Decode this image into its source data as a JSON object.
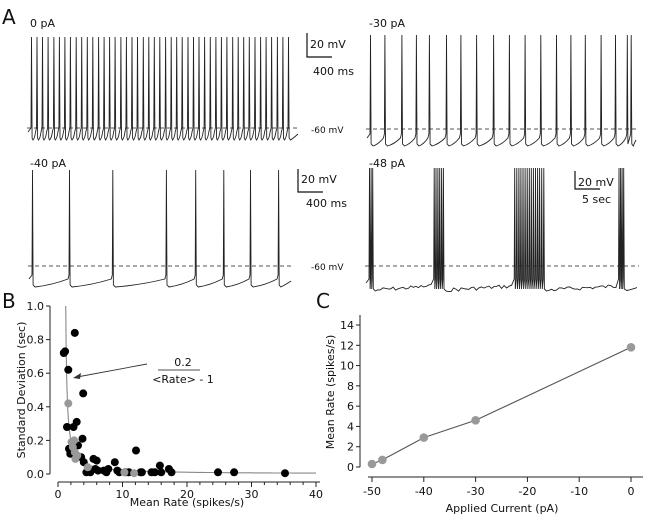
{
  "figure": {
    "panel_labels": {
      "a": "A",
      "b": "B",
      "c": "C"
    }
  },
  "chart_data": [
    {
      "type": "line",
      "panel": "A",
      "subpanel": "top-left",
      "title": "0 pA",
      "description": "membrane voltage trace, regular tonic spiking",
      "spike_count": 47,
      "spike_times_fraction": [
        0.0,
        0.021,
        0.042,
        0.063,
        0.085,
        0.106,
        0.127,
        0.148,
        0.17,
        0.191,
        0.212,
        0.233,
        0.255,
        0.276,
        0.297,
        0.318,
        0.34,
        0.361,
        0.382,
        0.403,
        0.425,
        0.446,
        0.467,
        0.488,
        0.51,
        0.531,
        0.552,
        0.573,
        0.595,
        0.616,
        0.637,
        0.658,
        0.68,
        0.701,
        0.722,
        0.743,
        0.765,
        0.786,
        0.807,
        0.828,
        0.85,
        0.871,
        0.892,
        0.913,
        0.935,
        0.956,
        0.977
      ],
      "reference_line_label": "-60 mV",
      "scale_bar": {
        "voltage": "20 mV",
        "time": "400 ms"
      }
    },
    {
      "type": "line",
      "panel": "A",
      "subpanel": "top-right",
      "title": "-30 pA",
      "description": "membrane voltage trace, tonic spiking at lower rate",
      "spike_count": 19,
      "spike_times_fraction": [
        0.0,
        0.055,
        0.12,
        0.175,
        0.225,
        0.29,
        0.345,
        0.405,
        0.47,
        0.53,
        0.59,
        0.65,
        0.71,
        0.765,
        0.82,
        0.88,
        0.935,
        0.98,
        0.995
      ],
      "reference_line_label": "-60 mV"
    },
    {
      "type": "line",
      "panel": "A",
      "subpanel": "bottom-left",
      "title": "-40 pA",
      "description": "membrane voltage trace, irregular slow spiking",
      "spike_count": 8,
      "spike_times_fraction": [
        0.0,
        0.145,
        0.315,
        0.525,
        0.64,
        0.75,
        0.855,
        0.965
      ],
      "reference_line_label": "-60 mV",
      "scale_bar": {
        "voltage": "20 mV",
        "time": "400 ms"
      }
    },
    {
      "type": "line",
      "panel": "A",
      "subpanel": "bottom-right",
      "title": "-48 pA",
      "description": "membrane voltage trace, bursting with long quiescent intervals",
      "bursts": [
        {
          "start_fraction": 0.0,
          "spikes": 3
        },
        {
          "start_fraction": 0.245,
          "spikes": 6
        },
        {
          "start_fraction": 0.55,
          "spikes": 15
        },
        {
          "start_fraction": 0.945,
          "spikes": 4
        }
      ],
      "reference_line_label": "-60 mV",
      "scale_bar": {
        "voltage": "20 mV",
        "time": "5 sec"
      }
    },
    {
      "type": "scatter",
      "panel": "B",
      "title": "",
      "xlabel": "Mean Rate (spikes/s)",
      "ylabel": "Standard Deviation (sec)",
      "xlim": [
        0,
        40
      ],
      "ylim": [
        0,
        1.0
      ],
      "xticks": [
        0,
        10,
        20,
        30,
        40
      ],
      "yticks": [
        0.0,
        0.2,
        0.4,
        0.6,
        0.8,
        1.0
      ],
      "ytick_labels": [
        "0.0",
        "0.2",
        "0.4",
        "0.6",
        "0.8",
        "1.0"
      ],
      "grid": false,
      "annotation": {
        "numerator": "0.2",
        "denominator": "<Rate> - 1"
      },
      "fit_curve": {
        "formula": "0.2 / (rate - 1)",
        "x_start": 1.2,
        "x_end": 40
      },
      "series": [
        {
          "name": "black",
          "color": "#000000",
          "points": [
            [
              0.9,
              0.72
            ],
            [
              1.1,
              0.73
            ],
            [
              2.6,
              0.84
            ],
            [
              1.6,
              0.62
            ],
            [
              3.9,
              0.48
            ],
            [
              1.4,
              0.28
            ],
            [
              2.4,
              0.28
            ],
            [
              2.9,
              0.31
            ],
            [
              3.8,
              0.21
            ],
            [
              1.7,
              0.15
            ],
            [
              1.9,
              0.12
            ],
            [
              3.1,
              0.17
            ],
            [
              3.6,
              0.1
            ],
            [
              4.0,
              0.07
            ],
            [
              4.4,
              0.01
            ],
            [
              5.5,
              0.09
            ],
            [
              6.0,
              0.08
            ],
            [
              5.8,
              0.03
            ],
            [
              6.2,
              0.02
            ],
            [
              7.1,
              0.02
            ],
            [
              7.5,
              0.01
            ],
            [
              7.8,
              0.03
            ],
            [
              8.8,
              0.07
            ],
            [
              9.2,
              0.02
            ],
            [
              10.4,
              0.01
            ],
            [
              11.0,
              0.01
            ],
            [
              12.1,
              0.14
            ],
            [
              12.8,
              0.01
            ],
            [
              13.0,
              0.01
            ],
            [
              14.5,
              0.01
            ],
            [
              15.0,
              0.01
            ],
            [
              15.8,
              0.05
            ],
            [
              16.0,
              0.01
            ],
            [
              17.2,
              0.03
            ],
            [
              17.6,
              0.01
            ],
            [
              24.8,
              0.01
            ],
            [
              27.3,
              0.01
            ],
            [
              35.2,
              0.005
            ],
            [
              5.0,
              0.01
            ],
            [
              9.5,
              0.01
            ]
          ]
        },
        {
          "name": "gray",
          "color": "#999999",
          "points": [
            [
              1.6,
              0.42
            ],
            [
              2.1,
              0.19
            ],
            [
              2.5,
              0.2
            ],
            [
              2.3,
              0.16
            ],
            [
              2.6,
              0.13
            ],
            [
              2.7,
              0.09
            ],
            [
              3.0,
              0.11
            ],
            [
              4.6,
              0.04
            ],
            [
              10.3,
              0.01
            ],
            [
              11.8,
              0.005
            ]
          ]
        }
      ]
    },
    {
      "type": "line",
      "panel": "C",
      "title": "",
      "xlabel": "Applied Current (pA)",
      "ylabel": "Mean Rate (spikes/s)",
      "xlim": [
        -50,
        0
      ],
      "ylim": [
        0,
        14
      ],
      "xticks": [
        -50,
        -40,
        -30,
        -20,
        -10,
        0
      ],
      "yticks": [
        0,
        2,
        4,
        6,
        8,
        10,
        12,
        14
      ],
      "grid": false,
      "series": [
        {
          "name": "mean rate",
          "color": "#999999",
          "line_color": "#555555",
          "x": [
            -50,
            -48,
            -40,
            -30,
            0
          ],
          "y": [
            0.3,
            0.7,
            2.9,
            4.6,
            11.8
          ]
        }
      ]
    }
  ]
}
